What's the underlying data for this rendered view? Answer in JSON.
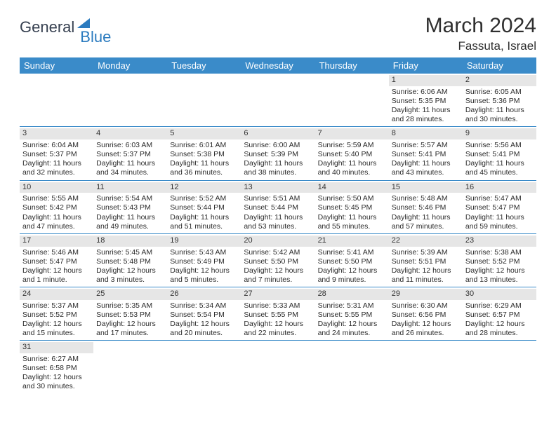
{
  "brand": {
    "part1": "General",
    "part2": "Blue"
  },
  "title": "March 2024",
  "location": "Fassuta, Israel",
  "colors": {
    "header_bg": "#3a8bc9",
    "header_fg": "#ffffff",
    "band_bg": "#e6e6e6",
    "rule": "#3a8bc9",
    "brand_accent": "#2b7bbf",
    "text": "#2b2b2b"
  },
  "days_of_week": [
    "Sunday",
    "Monday",
    "Tuesday",
    "Wednesday",
    "Thursday",
    "Friday",
    "Saturday"
  ],
  "weeks": [
    [
      null,
      null,
      null,
      null,
      null,
      {
        "n": "1",
        "sunrise": "Sunrise: 6:06 AM",
        "sunset": "Sunset: 5:35 PM",
        "daylight": "Daylight: 11 hours and 28 minutes."
      },
      {
        "n": "2",
        "sunrise": "Sunrise: 6:05 AM",
        "sunset": "Sunset: 5:36 PM",
        "daylight": "Daylight: 11 hours and 30 minutes."
      }
    ],
    [
      {
        "n": "3",
        "sunrise": "Sunrise: 6:04 AM",
        "sunset": "Sunset: 5:37 PM",
        "daylight": "Daylight: 11 hours and 32 minutes."
      },
      {
        "n": "4",
        "sunrise": "Sunrise: 6:03 AM",
        "sunset": "Sunset: 5:37 PM",
        "daylight": "Daylight: 11 hours and 34 minutes."
      },
      {
        "n": "5",
        "sunrise": "Sunrise: 6:01 AM",
        "sunset": "Sunset: 5:38 PM",
        "daylight": "Daylight: 11 hours and 36 minutes."
      },
      {
        "n": "6",
        "sunrise": "Sunrise: 6:00 AM",
        "sunset": "Sunset: 5:39 PM",
        "daylight": "Daylight: 11 hours and 38 minutes."
      },
      {
        "n": "7",
        "sunrise": "Sunrise: 5:59 AM",
        "sunset": "Sunset: 5:40 PM",
        "daylight": "Daylight: 11 hours and 40 minutes."
      },
      {
        "n": "8",
        "sunrise": "Sunrise: 5:57 AM",
        "sunset": "Sunset: 5:41 PM",
        "daylight": "Daylight: 11 hours and 43 minutes."
      },
      {
        "n": "9",
        "sunrise": "Sunrise: 5:56 AM",
        "sunset": "Sunset: 5:41 PM",
        "daylight": "Daylight: 11 hours and 45 minutes."
      }
    ],
    [
      {
        "n": "10",
        "sunrise": "Sunrise: 5:55 AM",
        "sunset": "Sunset: 5:42 PM",
        "daylight": "Daylight: 11 hours and 47 minutes."
      },
      {
        "n": "11",
        "sunrise": "Sunrise: 5:54 AM",
        "sunset": "Sunset: 5:43 PM",
        "daylight": "Daylight: 11 hours and 49 minutes."
      },
      {
        "n": "12",
        "sunrise": "Sunrise: 5:52 AM",
        "sunset": "Sunset: 5:44 PM",
        "daylight": "Daylight: 11 hours and 51 minutes."
      },
      {
        "n": "13",
        "sunrise": "Sunrise: 5:51 AM",
        "sunset": "Sunset: 5:44 PM",
        "daylight": "Daylight: 11 hours and 53 minutes."
      },
      {
        "n": "14",
        "sunrise": "Sunrise: 5:50 AM",
        "sunset": "Sunset: 5:45 PM",
        "daylight": "Daylight: 11 hours and 55 minutes."
      },
      {
        "n": "15",
        "sunrise": "Sunrise: 5:48 AM",
        "sunset": "Sunset: 5:46 PM",
        "daylight": "Daylight: 11 hours and 57 minutes."
      },
      {
        "n": "16",
        "sunrise": "Sunrise: 5:47 AM",
        "sunset": "Sunset: 5:47 PM",
        "daylight": "Daylight: 11 hours and 59 minutes."
      }
    ],
    [
      {
        "n": "17",
        "sunrise": "Sunrise: 5:46 AM",
        "sunset": "Sunset: 5:47 PM",
        "daylight": "Daylight: 12 hours and 1 minute."
      },
      {
        "n": "18",
        "sunrise": "Sunrise: 5:45 AM",
        "sunset": "Sunset: 5:48 PM",
        "daylight": "Daylight: 12 hours and 3 minutes."
      },
      {
        "n": "19",
        "sunrise": "Sunrise: 5:43 AM",
        "sunset": "Sunset: 5:49 PM",
        "daylight": "Daylight: 12 hours and 5 minutes."
      },
      {
        "n": "20",
        "sunrise": "Sunrise: 5:42 AM",
        "sunset": "Sunset: 5:50 PM",
        "daylight": "Daylight: 12 hours and 7 minutes."
      },
      {
        "n": "21",
        "sunrise": "Sunrise: 5:41 AM",
        "sunset": "Sunset: 5:50 PM",
        "daylight": "Daylight: 12 hours and 9 minutes."
      },
      {
        "n": "22",
        "sunrise": "Sunrise: 5:39 AM",
        "sunset": "Sunset: 5:51 PM",
        "daylight": "Daylight: 12 hours and 11 minutes."
      },
      {
        "n": "23",
        "sunrise": "Sunrise: 5:38 AM",
        "sunset": "Sunset: 5:52 PM",
        "daylight": "Daylight: 12 hours and 13 minutes."
      }
    ],
    [
      {
        "n": "24",
        "sunrise": "Sunrise: 5:37 AM",
        "sunset": "Sunset: 5:52 PM",
        "daylight": "Daylight: 12 hours and 15 minutes."
      },
      {
        "n": "25",
        "sunrise": "Sunrise: 5:35 AM",
        "sunset": "Sunset: 5:53 PM",
        "daylight": "Daylight: 12 hours and 17 minutes."
      },
      {
        "n": "26",
        "sunrise": "Sunrise: 5:34 AM",
        "sunset": "Sunset: 5:54 PM",
        "daylight": "Daylight: 12 hours and 20 minutes."
      },
      {
        "n": "27",
        "sunrise": "Sunrise: 5:33 AM",
        "sunset": "Sunset: 5:55 PM",
        "daylight": "Daylight: 12 hours and 22 minutes."
      },
      {
        "n": "28",
        "sunrise": "Sunrise: 5:31 AM",
        "sunset": "Sunset: 5:55 PM",
        "daylight": "Daylight: 12 hours and 24 minutes."
      },
      {
        "n": "29",
        "sunrise": "Sunrise: 6:30 AM",
        "sunset": "Sunset: 6:56 PM",
        "daylight": "Daylight: 12 hours and 26 minutes."
      },
      {
        "n": "30",
        "sunrise": "Sunrise: 6:29 AM",
        "sunset": "Sunset: 6:57 PM",
        "daylight": "Daylight: 12 hours and 28 minutes."
      }
    ],
    [
      {
        "n": "31",
        "sunrise": "Sunrise: 6:27 AM",
        "sunset": "Sunset: 6:58 PM",
        "daylight": "Daylight: 12 hours and 30 minutes."
      },
      null,
      null,
      null,
      null,
      null,
      null
    ]
  ]
}
